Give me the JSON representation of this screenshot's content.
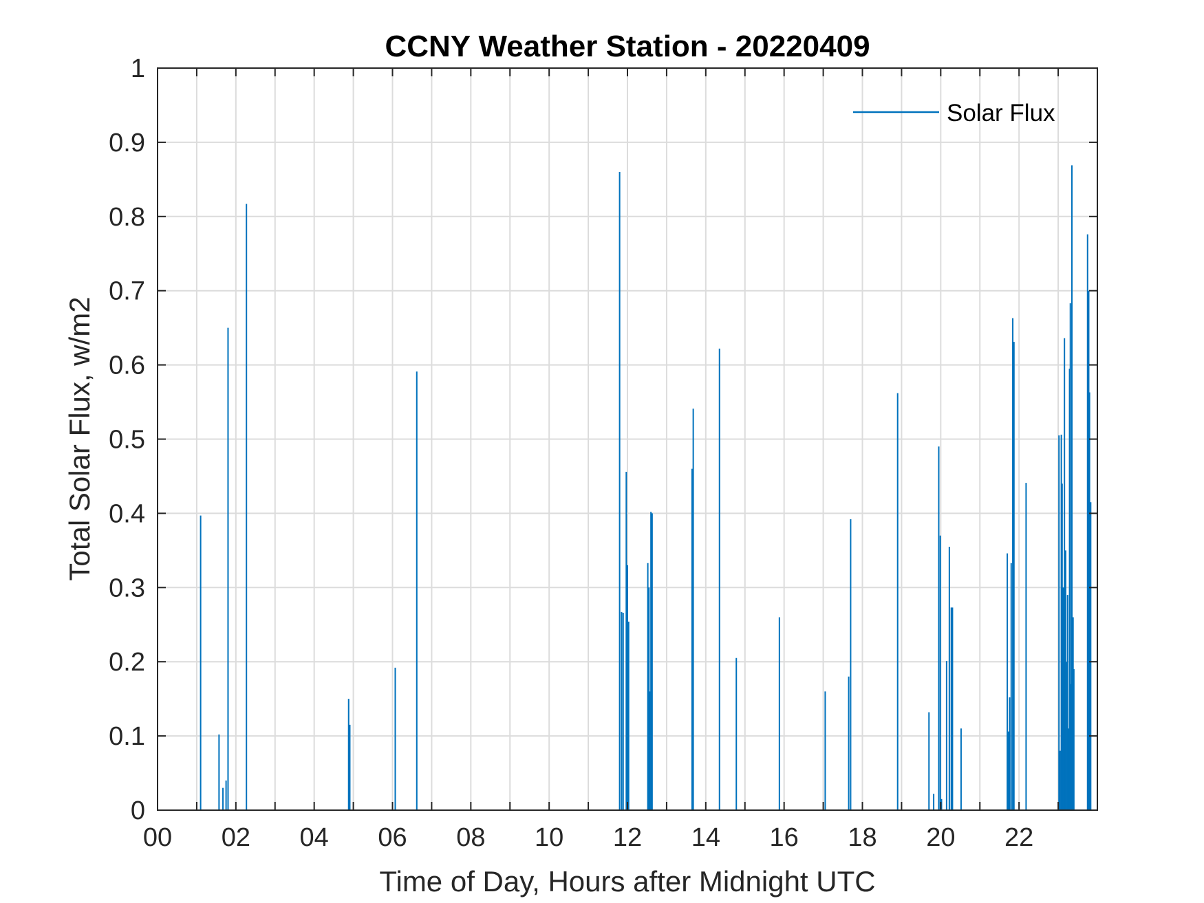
{
  "chart_data": {
    "type": "bar",
    "title": "CCNY Weather Station - 20220409",
    "xlabel": "Time of Day, Hours after Midnight UTC",
    "ylabel": "Total Solar Flux, w/m2",
    "xlim": [
      0,
      24
    ],
    "ylim": [
      0,
      1
    ],
    "grid": true,
    "legend": {
      "entries": [
        "Solar Flux"
      ],
      "placement": "top-right"
    },
    "x_ticks": [
      0,
      2,
      4,
      6,
      8,
      10,
      12,
      14,
      16,
      18,
      20,
      22
    ],
    "x_tick_labels": [
      "00",
      "02",
      "04",
      "06",
      "08",
      "10",
      "12",
      "14",
      "16",
      "18",
      "20",
      "22"
    ],
    "y_ticks": [
      0,
      0.1,
      0.2,
      0.3,
      0.4,
      0.5,
      0.6,
      0.7,
      0.8,
      0.9,
      1
    ],
    "y_tick_labels": [
      "0",
      "0.1",
      "0.2",
      "0.3",
      "0.4",
      "0.5",
      "0.6",
      "0.7",
      "0.8",
      "0.9",
      "1"
    ],
    "series": [
      {
        "name": "Solar Flux",
        "color": "#0072BD",
        "points": [
          [
            1.1,
            0.397
          ],
          [
            1.57,
            0.102
          ],
          [
            1.67,
            0.03
          ],
          [
            1.75,
            0.04
          ],
          [
            1.8,
            0.65
          ],
          [
            2.27,
            0.817
          ],
          [
            4.88,
            0.15
          ],
          [
            4.91,
            0.115
          ],
          [
            6.07,
            0.192
          ],
          [
            6.62,
            0.591
          ],
          [
            11.8,
            0.86
          ],
          [
            11.85,
            0.267
          ],
          [
            11.89,
            0.266
          ],
          [
            11.97,
            0.456
          ],
          [
            12.0,
            0.33
          ],
          [
            12.03,
            0.254
          ],
          [
            12.52,
            0.333
          ],
          [
            12.55,
            0.3
          ],
          [
            12.57,
            0.16
          ],
          [
            12.6,
            0.402
          ],
          [
            12.63,
            0.4
          ],
          [
            13.65,
            0.46
          ],
          [
            13.68,
            0.541
          ],
          [
            14.35,
            0.622
          ],
          [
            14.78,
            0.205
          ],
          [
            15.88,
            0.26
          ],
          [
            17.05,
            0.16
          ],
          [
            17.65,
            0.18
          ],
          [
            17.7,
            0.392
          ],
          [
            18.9,
            0.562
          ],
          [
            19.7,
            0.132
          ],
          [
            19.82,
            0.022
          ],
          [
            19.95,
            0.49
          ],
          [
            19.99,
            0.37
          ],
          [
            20.02,
            0.015
          ],
          [
            20.15,
            0.201
          ],
          [
            20.22,
            0.355
          ],
          [
            20.27,
            0.273
          ],
          [
            20.3,
            0.273
          ],
          [
            20.52,
            0.11
          ],
          [
            21.7,
            0.346
          ],
          [
            21.73,
            0.106
          ],
          [
            21.76,
            0.152
          ],
          [
            21.8,
            0.333
          ],
          [
            21.84,
            0.663
          ],
          [
            21.87,
            0.631
          ],
          [
            22.18,
            0.441
          ],
          [
            23.02,
            0.505
          ],
          [
            23.05,
            0.08
          ],
          [
            23.08,
            0.506
          ],
          [
            23.1,
            0.44
          ],
          [
            23.13,
            0.3
          ],
          [
            23.16,
            0.636
          ],
          [
            23.19,
            0.35
          ],
          [
            23.22,
            0.2
          ],
          [
            23.24,
            0.29
          ],
          [
            23.27,
            0.11
          ],
          [
            23.29,
            0.595
          ],
          [
            23.31,
            0.683
          ],
          [
            23.33,
            0.17
          ],
          [
            23.35,
            0.869
          ],
          [
            23.38,
            0.26
          ],
          [
            23.4,
            0.19
          ],
          [
            23.75,
            0.776
          ],
          [
            23.78,
            0.7
          ],
          [
            23.8,
            0.563
          ],
          [
            23.83,
            0.415
          ]
        ]
      }
    ]
  }
}
